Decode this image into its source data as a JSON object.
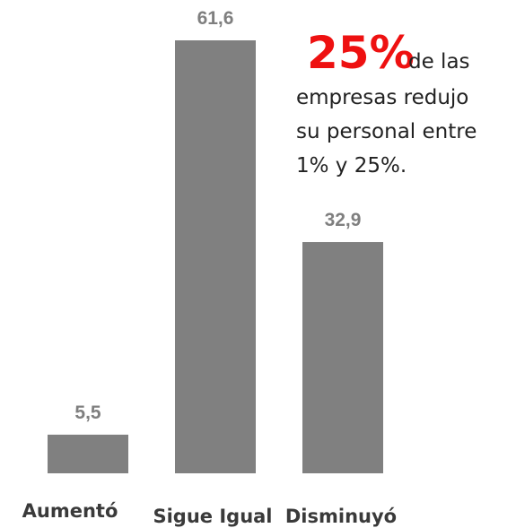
{
  "chart_data": {
    "type": "bar",
    "categories": [
      "Aumentó",
      "Sigue Igual",
      "Disminuyó"
    ],
    "values": [
      5.5,
      61.6,
      32.9
    ],
    "value_labels": [
      "5,5",
      "61,6",
      "32,9"
    ],
    "color": "#808080",
    "annotation": {
      "highlight": "25%",
      "lines": [
        "de las",
        "empresas redujo",
        "su personal entre",
        "1% y 25%."
      ]
    }
  }
}
